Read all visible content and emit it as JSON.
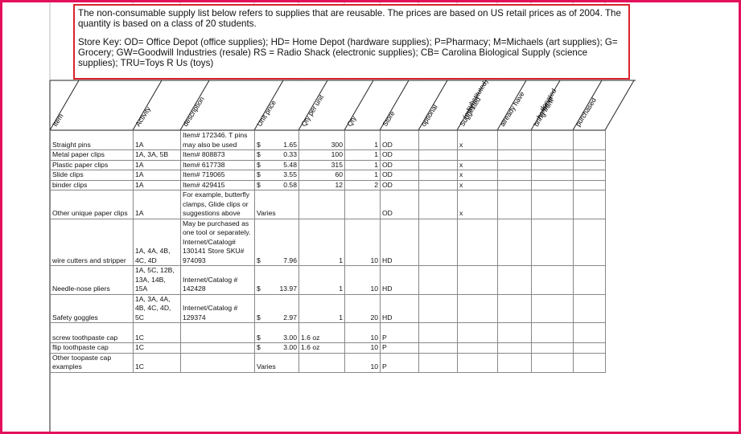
{
  "intro": {
    "paragraphs": [
      "The non-consumable supply list below refers to supplies that are reusable. The prices are based on US retail prices as of 2004. The quantity is based on a class of 20 students.",
      "Store Key: OD= Office Depot (office supplies); HD= Home Depot (hardware supplies); P=Pharmacy; M=Michaels (art supplies); G= Grocery; GW=Goodwill Industries (resale) RS = Radio Shack (electronic supplies); CB= Carolina Biological Supply (science supplies); TRU=Toys R Us (toys)"
    ]
  },
  "table": {
    "headers": [
      [
        "Item"
      ],
      [
        "Activity"
      ],
      [
        "description"
      ],
      [
        "Unit price"
      ],
      [
        "Qty per unit"
      ],
      [
        "Qty"
      ],
      [
        "Store"
      ],
      [
        "optional"
      ],
      [
        "Suggested",
        "(may",
        "substituted)"
      ],
      [
        "already have"
      ],
      [
        "bring from",
        "home or",
        "donated"
      ],
      [
        "purchased"
      ]
    ],
    "rows": [
      {
        "item": "Straight pins",
        "activity": "1A",
        "description": "Item# 172346. T pins may also be used",
        "currency": "$",
        "price": "1.65",
        "qty_per_unit": "300",
        "qty": "1",
        "store": "OD",
        "suggested": "x"
      },
      {
        "item": "Metal paper clips",
        "activity": "1A, 3A, 5B",
        "description": "Item# 808873",
        "currency": "$",
        "price": "0.33",
        "qty_per_unit": "100",
        "qty": "1",
        "store": "OD"
      },
      {
        "item": "Plastic paper clips",
        "activity": "1A",
        "description": "Item# 617738",
        "currency": "$",
        "price": "5.48",
        "qty_per_unit": "315",
        "qty": "1",
        "store": "OD",
        "suggested": "x"
      },
      {
        "item": "Slide clips",
        "activity": "1A",
        "description": "Item# 719065",
        "currency": "$",
        "price": "3.55",
        "qty_per_unit": "60",
        "qty": "1",
        "store": "OD",
        "suggested": "x"
      },
      {
        "item": "binder clips",
        "activity": "1A",
        "description": "Item# 429415",
        "currency": "$",
        "price": "0.58",
        "qty_per_unit": "12",
        "qty": "2",
        "store": "OD",
        "suggested": "x"
      },
      {
        "item": "Other unique paper clips",
        "activity": "1A",
        "description": "For example, butterfly clamps, Glide clips or suggestions above",
        "price": "Varies",
        "store": "OD",
        "suggested": "x"
      },
      {
        "item": "wire cutters and stripper",
        "activity": "1A, 4A, 4B, 4C, 4D",
        "description": "May be purchased as one tool or separately. Internet/Catalog# 130141 Store SKU# 974093",
        "currency": "$",
        "price": "7.96",
        "qty_per_unit": "1",
        "qty": "10",
        "store": "HD"
      },
      {
        "item": "Needle-nose pliers",
        "activity": "1A, 5C, 12B, 13A, 14B, 15A",
        "description": "Internet/Catalog # 142428",
        "currency": "$",
        "price": "13.97",
        "qty_per_unit": "1",
        "qty": "10",
        "store": "HD"
      },
      {
        "item": "Safety goggles",
        "activity": "1A, 3A, 4A, 4B, 4C, 4D, 5C",
        "description": "Internet/Catalog # 129374",
        "currency": "$",
        "price": "2.97",
        "qty_per_unit": "1",
        "qty": "20",
        "store": "HD"
      },
      {
        "item": "screw toothpaste cap",
        "activity": "1C",
        "currency": "$",
        "price": "3.00",
        "qty_per_unit": "1.6 oz",
        "qty": "10",
        "store": "P"
      },
      {
        "item": "flip toothpaste cap",
        "activity": "1C",
        "currency": "$",
        "price": "3.00",
        "qty_per_unit": "1.6 oz",
        "qty": "10",
        "store": "P"
      },
      {
        "item": "Other toopaste cap examples",
        "activity": "1C",
        "price": "Varies",
        "qty": "10",
        "store": "P"
      }
    ]
  }
}
